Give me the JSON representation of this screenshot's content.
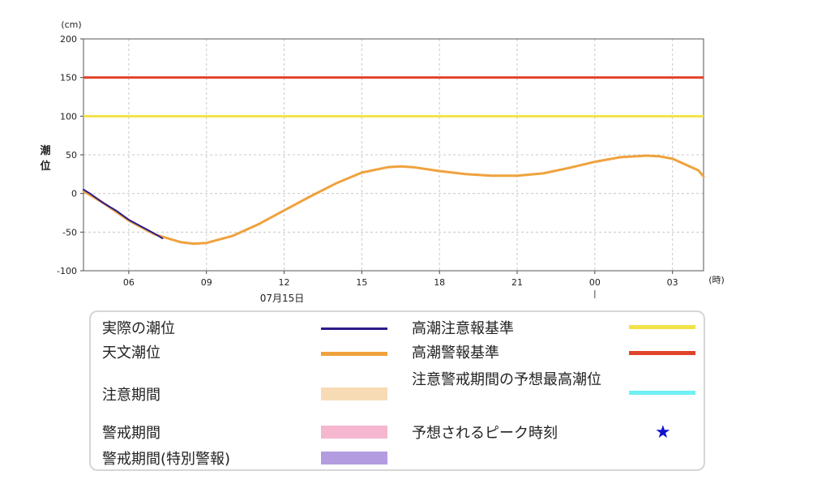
{
  "chart_data": {
    "type": "line",
    "y_unit": "(cm)",
    "ylabel": "潮\n位",
    "x_unit": "(時)",
    "date_label": "07月15日",
    "ylim": [
      -100,
      200
    ],
    "y_ticks": [
      200,
      150,
      100,
      50,
      0,
      -50,
      -100
    ],
    "x_ticks": [
      {
        "hour": 6,
        "label": "06"
      },
      {
        "hour": 9,
        "label": "09"
      },
      {
        "hour": 12,
        "label": "12"
      },
      {
        "hour": 15,
        "label": "15"
      },
      {
        "hour": 18,
        "label": "18"
      },
      {
        "hour": 21,
        "label": "21"
      },
      {
        "hour": 24,
        "label": "00"
      },
      {
        "hour": 27,
        "label": "03"
      }
    ],
    "xlim_hours": [
      4.25,
      28.2
    ],
    "grid": true,
    "thresholds": [
      {
        "name": "高潮警報基準",
        "value": 150,
        "color": "#e0442a"
      },
      {
        "name": "高潮注意報基準",
        "value": 100,
        "color": "#f2e24a"
      }
    ],
    "series": [
      {
        "name": "天文潮位",
        "color": "#efa23e",
        "x": [
          4.25,
          5,
          6,
          7,
          8,
          8.5,
          9,
          10,
          11,
          12,
          13,
          14,
          15,
          16,
          16.5,
          17,
          18,
          19,
          20,
          21,
          22,
          23,
          24,
          25,
          26,
          26.5,
          27,
          28,
          28.2
        ],
        "y": [
          3,
          -12,
          -35,
          -53,
          -63,
          -65,
          -64,
          -55,
          -40,
          -22,
          -4,
          13,
          27,
          34,
          35,
          34,
          29,
          25,
          23,
          23,
          26,
          33,
          41,
          47,
          49,
          48,
          45,
          30,
          22
        ]
      },
      {
        "name": "実際の潮位",
        "color": "#2a1a8a",
        "x": [
          4.25,
          4.5,
          5,
          5.5,
          6,
          6.5,
          7,
          7.3
        ],
        "y": [
          5,
          0,
          -12,
          -22,
          -34,
          -43,
          -52,
          -58
        ]
      }
    ],
    "legend": [
      {
        "label": "実際の潮位",
        "kind": "line",
        "color": "#2a1a8a"
      },
      {
        "label": "天文潮位",
        "kind": "line",
        "color": "#efa23e"
      },
      {
        "label": "注意期間",
        "kind": "band",
        "color": "#f7dbb4"
      },
      {
        "label": "警戒期間",
        "kind": "band",
        "color": "#f5b6cf"
      },
      {
        "label": "警戒期間(特別警報)",
        "kind": "band",
        "color": "#b39de0"
      },
      {
        "label": "高潮注意報基準",
        "kind": "line",
        "color": "#f2e24a"
      },
      {
        "label": "高潮警報基準",
        "kind": "line",
        "color": "#e0442a"
      },
      {
        "label": "注意警戒期間の予想最高潮位",
        "kind": "line",
        "color": "#6ff0f5"
      },
      {
        "label": "予想されるピーク時刻",
        "kind": "star",
        "color": "#1010d0"
      }
    ]
  }
}
